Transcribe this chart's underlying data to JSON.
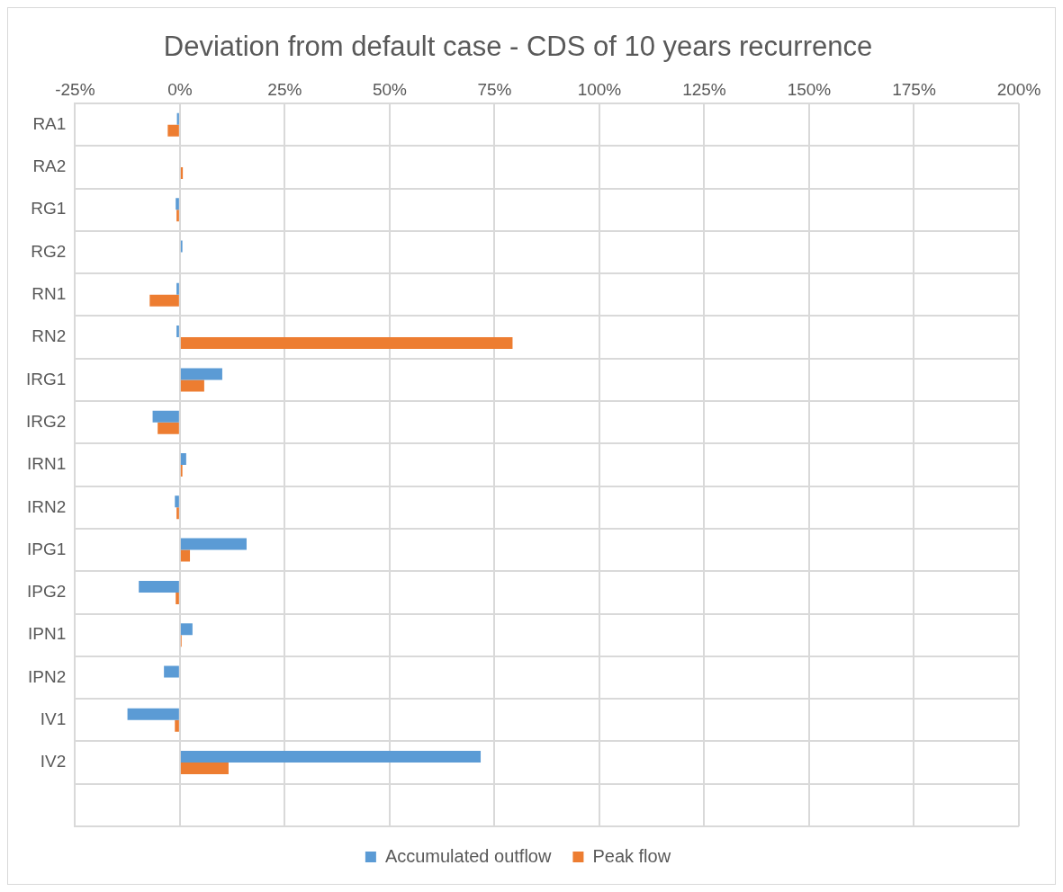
{
  "chart_data": {
    "type": "bar",
    "orientation": "horizontal",
    "title": "Deviation from default case - CDS of 10 years recurrence",
    "categories": [
      "RA1",
      "RA2",
      "RG1",
      "RG2",
      "RN1",
      "RN2",
      "IRG1",
      "IRG2",
      "IRN1",
      "IRN2",
      "IPG1",
      "IPG2",
      "IPN1",
      "IPN2",
      "IV1",
      "IV2",
      null
    ],
    "series": [
      {
        "name": "Accumulated outflow",
        "color": "#5b9bd5",
        "values": [
          -0.7,
          0,
          -1.0,
          0.6,
          -0.8,
          -0.8,
          10.1,
          -6.5,
          1.5,
          -1.2,
          15.9,
          -9.8,
          3.0,
          -3.8,
          -12.5,
          71.7,
          null
        ]
      },
      {
        "name": "Peak flow",
        "color": "#ed7d31",
        "values": [
          -2.9,
          0.7,
          -0.8,
          null,
          -7.2,
          79.3,
          5.8,
          -5.3,
          0.6,
          -0.8,
          2.4,
          -1.0,
          0.4,
          null,
          -1.2,
          11.6,
          null
        ]
      }
    ],
    "xlim": [
      -25,
      200
    ],
    "xticks": [
      {
        "value": -25,
        "label": "-25%"
      },
      {
        "value": 0,
        "label": "0%"
      },
      {
        "value": 25,
        "label": "25%"
      },
      {
        "value": 50,
        "label": "50%"
      },
      {
        "value": 75,
        "label": "75%"
      },
      {
        "value": 100,
        "label": "100%"
      },
      {
        "value": 125,
        "label": "125%"
      },
      {
        "value": 150,
        "label": "150%"
      },
      {
        "value": 175,
        "label": "175%"
      },
      {
        "value": 200,
        "label": "200%"
      }
    ],
    "grid": true,
    "legend": "bottom"
  }
}
